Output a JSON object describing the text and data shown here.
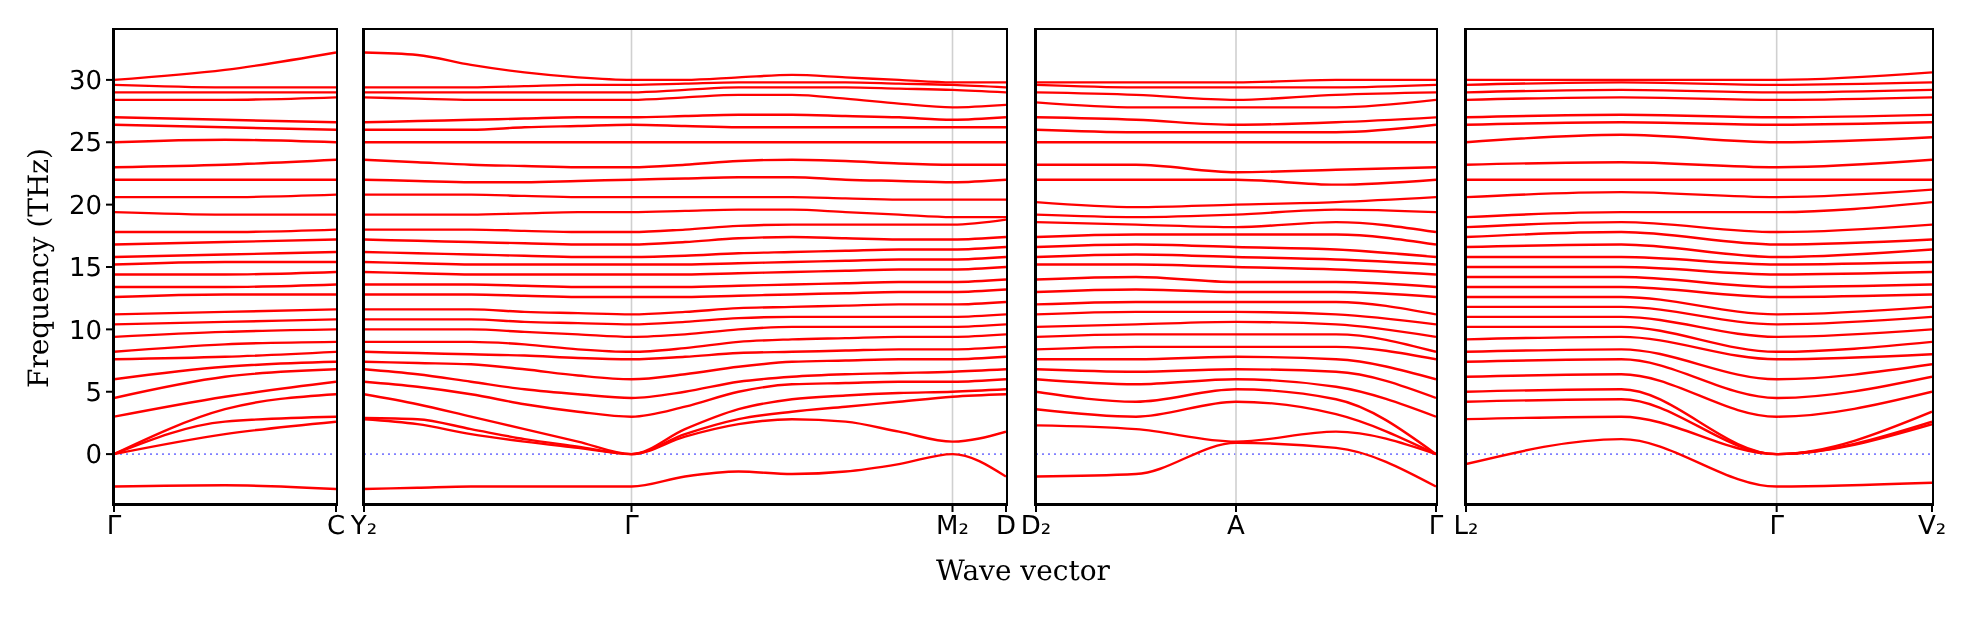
{
  "chart_data": [
    {
      "type": "line",
      "ylabel": "Frequency (THz)",
      "color": "#ff0000",
      "categories": [
        "Γ",
        null,
        "C"
      ],
      "ylim": [
        -4,
        34
      ],
      "yticks": [
        0,
        5,
        10,
        15,
        20,
        25,
        30
      ],
      "ref_lines": [
        {
          "axis": "y",
          "value": 0,
          "color": "#7f7fff",
          "line_style": "dotted"
        }
      ],
      "series": [
        {
          "values": [
            -2.6,
            -2.5,
            -2.8
          ]
        },
        {
          "values": [
            0,
            1.6,
            2.6
          ]
        },
        {
          "values": [
            0,
            2.6,
            3.0
          ]
        },
        {
          "values": [
            0,
            3.6,
            4.8
          ]
        },
        {
          "values": [
            3.0,
            4.6,
            5.8
          ]
        },
        {
          "values": [
            4.5,
            6.2,
            6.8
          ]
        },
        {
          "values": [
            6.0,
            7.0,
            7.4
          ]
        },
        {
          "values": [
            7.6,
            7.8,
            8.2
          ]
        },
        {
          "values": [
            8.2,
            8.8,
            9.0
          ]
        },
        {
          "values": [
            9.4,
            9.8,
            10.0
          ]
        },
        {
          "values": [
            10.4,
            10.6,
            10.8
          ]
        },
        {
          "values": [
            11.2,
            11.4,
            11.6
          ]
        },
        {
          "values": [
            12.6,
            12.8,
            12.8
          ]
        },
        {
          "values": [
            13.4,
            13.4,
            13.6
          ]
        },
        {
          "values": [
            14.4,
            14.4,
            14.6
          ]
        },
        {
          "values": [
            15.2,
            15.4,
            15.4
          ]
        },
        {
          "values": [
            15.8,
            16.0,
            16.2
          ]
        },
        {
          "values": [
            16.8,
            17.0,
            17.2
          ]
        },
        {
          "values": [
            17.8,
            17.8,
            18.0
          ]
        },
        {
          "values": [
            19.4,
            19.2,
            19.2
          ]
        },
        {
          "values": [
            20.6,
            20.6,
            20.8
          ]
        },
        {
          "values": [
            22.0,
            22.0,
            22.0
          ]
        },
        {
          "values": [
            23.0,
            23.2,
            23.6
          ]
        },
        {
          "values": [
            25.0,
            25.2,
            25.0
          ]
        },
        {
          "values": [
            26.4,
            26.2,
            26.0
          ]
        },
        {
          "values": [
            27.0,
            26.8,
            26.6
          ]
        },
        {
          "values": [
            28.4,
            28.4,
            28.6
          ]
        },
        {
          "values": [
            29.0,
            29.0,
            29.0
          ]
        },
        {
          "values": [
            29.6,
            29.4,
            29.4
          ]
        },
        {
          "values": [
            30.0,
            30.8,
            32.2
          ]
        }
      ]
    },
    {
      "type": "line",
      "xlabel": "Wave vector",
      "color": "#ff0000",
      "tick_labels": "x",
      "categories": [
        "Y₂",
        null,
        null,
        null,
        null,
        "Γ",
        null,
        null,
        null,
        null,
        null,
        "M₂",
        "D"
      ],
      "ylim": [
        -4,
        34
      ],
      "yticks": [
        0,
        5,
        10,
        15,
        20,
        25,
        30
      ],
      "ref_lines": [
        {
          "axis": "y",
          "value": 0,
          "color": "#7f7fff",
          "line_style": "dotted"
        },
        {
          "axis": "x",
          "value": "Γ",
          "color": "#d0d0d0",
          "line_style": "solid"
        },
        {
          "axis": "x",
          "value": "M₂",
          "color": "#d0d0d0",
          "line_style": "solid"
        }
      ],
      "series": [
        {
          "values": [
            -2.8,
            -2.7,
            -2.6,
            -2.6,
            -2.6,
            -2.6,
            -1.8,
            -1.4,
            -1.6,
            -1.4,
            -0.8,
            0,
            -1.8
          ]
        },
        {
          "values": [
            2.8,
            2.4,
            1.6,
            1.0,
            0.5,
            0,
            1.4,
            2.4,
            2.8,
            2.6,
            1.8,
            1.0,
            1.8
          ]
        },
        {
          "values": [
            2.9,
            2.8,
            2.0,
            1.2,
            0.6,
            0,
            1.6,
            2.8,
            3.4,
            3.8,
            4.2,
            4.6,
            4.8
          ]
        },
        {
          "values": [
            4.8,
            4.0,
            3.0,
            2.0,
            1.0,
            0,
            2.0,
            3.6,
            4.4,
            4.7,
            4.9,
            5.0,
            5.2
          ]
        },
        {
          "values": [
            5.8,
            5.4,
            4.8,
            4.0,
            3.4,
            3.0,
            3.8,
            5.0,
            5.6,
            5.7,
            5.8,
            5.8,
            6.0
          ]
        },
        {
          "values": [
            6.8,
            6.4,
            5.8,
            5.2,
            4.8,
            4.5,
            5.0,
            5.8,
            6.2,
            6.4,
            6.5,
            6.6,
            6.8
          ]
        },
        {
          "values": [
            7.4,
            7.3,
            7.2,
            6.8,
            6.3,
            6.0,
            6.4,
            7.0,
            7.4,
            7.5,
            7.6,
            7.6,
            7.8
          ]
        },
        {
          "values": [
            8.2,
            8.1,
            8.0,
            7.9,
            7.7,
            7.6,
            7.8,
            8.1,
            8.2,
            8.3,
            8.4,
            8.4,
            8.6
          ]
        },
        {
          "values": [
            9.0,
            9.0,
            9.0,
            8.8,
            8.4,
            8.2,
            8.5,
            9.0,
            9.2,
            9.3,
            9.4,
            9.4,
            9.6
          ]
        },
        {
          "values": [
            10.0,
            10.0,
            10.0,
            9.8,
            9.6,
            9.4,
            9.6,
            10.0,
            10.2,
            10.2,
            10.2,
            10.2,
            10.4
          ]
        },
        {
          "values": [
            10.8,
            10.8,
            10.8,
            10.6,
            10.5,
            10.4,
            10.6,
            10.9,
            11.0,
            11.0,
            11.0,
            11.0,
            11.2
          ]
        },
        {
          "values": [
            11.6,
            11.6,
            11.6,
            11.4,
            11.3,
            11.2,
            11.4,
            11.7,
            11.8,
            11.9,
            12.0,
            12.0,
            12.2
          ]
        },
        {
          "values": [
            12.8,
            12.8,
            12.8,
            12.7,
            12.6,
            12.6,
            12.6,
            12.7,
            12.8,
            12.9,
            13.0,
            13.0,
            13.2
          ]
        },
        {
          "values": [
            13.6,
            13.6,
            13.6,
            13.5,
            13.4,
            13.4,
            13.4,
            13.5,
            13.6,
            13.7,
            13.8,
            13.8,
            14.0
          ]
        },
        {
          "values": [
            14.6,
            14.5,
            14.4,
            14.4,
            14.4,
            14.4,
            14.4,
            14.5,
            14.6,
            14.7,
            14.8,
            14.8,
            15.0
          ]
        },
        {
          "values": [
            15.4,
            15.3,
            15.2,
            15.2,
            15.2,
            15.2,
            15.2,
            15.3,
            15.4,
            15.5,
            15.6,
            15.6,
            15.8
          ]
        },
        {
          "values": [
            16.2,
            16.1,
            16.0,
            15.9,
            15.8,
            15.8,
            15.9,
            16.1,
            16.2,
            16.3,
            16.4,
            16.4,
            16.6
          ]
        },
        {
          "values": [
            17.2,
            17.1,
            17.0,
            16.9,
            16.8,
            16.8,
            17.0,
            17.3,
            17.4,
            17.3,
            17.2,
            17.2,
            17.4
          ]
        },
        {
          "values": [
            18.0,
            18.0,
            18.0,
            17.9,
            17.8,
            17.8,
            18.0,
            18.3,
            18.4,
            18.4,
            18.4,
            18.4,
            18.8
          ]
        },
        {
          "values": [
            19.2,
            19.2,
            19.2,
            19.3,
            19.4,
            19.4,
            19.5,
            19.6,
            19.6,
            19.4,
            19.2,
            19.0,
            19.0
          ]
        },
        {
          "values": [
            20.8,
            20.8,
            20.8,
            20.7,
            20.6,
            20.6,
            20.6,
            20.6,
            20.6,
            20.5,
            20.4,
            20.4,
            20.4
          ]
        },
        {
          "values": [
            22.0,
            21.9,
            21.8,
            21.8,
            21.9,
            22.0,
            22.1,
            22.2,
            22.2,
            22.0,
            21.9,
            21.8,
            22.0
          ]
        },
        {
          "values": [
            23.6,
            23.4,
            23.2,
            23.1,
            23.0,
            23.0,
            23.2,
            23.5,
            23.6,
            23.5,
            23.3,
            23.2,
            23.2
          ]
        },
        {
          "values": [
            25.0,
            25.0,
            25.0,
            25.0,
            25.0,
            25.0,
            25.0,
            25.0,
            25.0,
            25.0,
            25.0,
            25.0,
            25.0
          ]
        },
        {
          "values": [
            26.0,
            26.0,
            26.0,
            26.2,
            26.3,
            26.4,
            26.3,
            26.2,
            26.2,
            26.2,
            26.2,
            26.2,
            26.2
          ]
        },
        {
          "values": [
            26.6,
            26.7,
            26.8,
            26.9,
            27.0,
            27.0,
            27.1,
            27.2,
            27.2,
            27.1,
            27.0,
            26.8,
            27.0
          ]
        },
        {
          "values": [
            28.6,
            28.5,
            28.4,
            28.4,
            28.4,
            28.4,
            28.6,
            28.8,
            28.8,
            28.5,
            28.1,
            27.8,
            28.0
          ]
        },
        {
          "values": [
            29.0,
            29.0,
            29.0,
            29.0,
            29.0,
            29.0,
            29.2,
            29.4,
            29.4,
            29.4,
            29.3,
            29.2,
            29.0
          ]
        },
        {
          "values": [
            29.4,
            29.4,
            29.4,
            29.5,
            29.6,
            29.6,
            29.7,
            29.8,
            29.8,
            29.8,
            29.7,
            29.6,
            29.4
          ]
        },
        {
          "values": [
            32.2,
            32.0,
            31.2,
            30.6,
            30.2,
            30.0,
            30.0,
            30.2,
            30.4,
            30.2,
            30.0,
            29.8,
            29.8
          ]
        }
      ]
    },
    {
      "type": "line",
      "color": "#ff0000",
      "tick_labels": "x",
      "categories": [
        "D₂",
        null,
        "A",
        null,
        "Γ"
      ],
      "ylim": [
        -4,
        34
      ],
      "yticks": [
        0,
        5,
        10,
        15,
        20,
        25,
        30
      ],
      "ref_lines": [
        {
          "axis": "y",
          "value": 0,
          "color": "#7f7fff",
          "line_style": "dotted"
        },
        {
          "axis": "x",
          "value": "A",
          "color": "#d0d0d0",
          "line_style": "solid"
        }
      ],
      "series": [
        {
          "values": [
            -1.8,
            -1.6,
            0.9,
            0.5,
            -2.6
          ]
        },
        {
          "values": [
            2.3,
            2.0,
            1.0,
            1.8,
            0
          ]
        },
        {
          "values": [
            3.6,
            3.0,
            4.2,
            3.2,
            0
          ]
        },
        {
          "values": [
            5.0,
            4.2,
            5.2,
            4.4,
            0
          ]
        },
        {
          "values": [
            6.0,
            5.6,
            6.0,
            5.4,
            3.0
          ]
        },
        {
          "values": [
            6.8,
            6.6,
            6.8,
            6.6,
            4.5
          ]
        },
        {
          "values": [
            7.6,
            7.6,
            7.8,
            7.6,
            6.0
          ]
        },
        {
          "values": [
            8.4,
            8.6,
            8.6,
            8.6,
            7.6
          ]
        },
        {
          "values": [
            9.4,
            9.6,
            9.6,
            9.6,
            8.2
          ]
        },
        {
          "values": [
            10.2,
            10.4,
            10.6,
            10.4,
            9.4
          ]
        },
        {
          "values": [
            11.2,
            11.4,
            11.4,
            11.2,
            10.4
          ]
        },
        {
          "values": [
            12.0,
            12.2,
            12.2,
            12.2,
            11.2
          ]
        },
        {
          "values": [
            13.0,
            13.2,
            13.0,
            13.0,
            12.6
          ]
        },
        {
          "values": [
            14.0,
            14.2,
            13.8,
            13.8,
            13.4
          ]
        },
        {
          "values": [
            15.2,
            15.2,
            15.0,
            14.8,
            14.4
          ]
        },
        {
          "values": [
            15.8,
            16.0,
            15.8,
            15.6,
            15.2
          ]
        },
        {
          "values": [
            16.6,
            16.8,
            16.6,
            16.4,
            15.8
          ]
        },
        {
          "values": [
            17.4,
            17.6,
            17.6,
            17.6,
            16.8
          ]
        },
        {
          "values": [
            18.6,
            18.4,
            18.2,
            18.6,
            17.8
          ]
        },
        {
          "values": [
            19.2,
            19.0,
            19.2,
            19.6,
            19.4
          ]
        },
        {
          "values": [
            20.2,
            19.8,
            20.0,
            20.2,
            20.6
          ]
        },
        {
          "values": [
            22.0,
            22.0,
            22.0,
            21.6,
            22.0
          ]
        },
        {
          "values": [
            23.2,
            23.2,
            22.6,
            22.8,
            23.0
          ]
        },
        {
          "values": [
            25.0,
            25.0,
            25.0,
            25.0,
            25.0
          ]
        },
        {
          "values": [
            26.0,
            25.8,
            25.8,
            25.8,
            26.4
          ]
        },
        {
          "values": [
            27.0,
            26.8,
            26.4,
            26.6,
            27.0
          ]
        },
        {
          "values": [
            28.2,
            27.8,
            27.8,
            27.8,
            28.4
          ]
        },
        {
          "values": [
            29.0,
            28.8,
            28.4,
            28.8,
            29.0
          ]
        },
        {
          "values": [
            29.6,
            29.4,
            29.4,
            29.4,
            29.6
          ]
        },
        {
          "values": [
            29.8,
            29.8,
            29.8,
            30.0,
            30.0
          ]
        }
      ]
    },
    {
      "type": "line",
      "color": "#ff0000",
      "tick_labels": "x",
      "categories": [
        "L₂",
        null,
        "Γ",
        "V₂"
      ],
      "ylim": [
        -4,
        34
      ],
      "yticks": [
        0,
        5,
        10,
        15,
        20,
        25,
        30
      ],
      "ref_lines": [
        {
          "axis": "y",
          "value": 0,
          "color": "#7f7fff",
          "line_style": "dotted"
        },
        {
          "axis": "x",
          "value": "Γ",
          "color": "#d0d0d0",
          "line_style": "solid"
        }
      ],
      "series": [
        {
          "values": [
            -0.8,
            1.2,
            -2.6,
            -2.3
          ]
        },
        {
          "values": [
            2.8,
            3.0,
            0,
            2.4
          ]
        },
        {
          "values": [
            4.2,
            4.4,
            0,
            2.6
          ]
        },
        {
          "values": [
            5.0,
            5.2,
            0,
            3.4
          ]
        },
        {
          "values": [
            6.2,
            6.4,
            3.0,
            5.0
          ]
        },
        {
          "values": [
            7.4,
            7.6,
            4.5,
            6.2
          ]
        },
        {
          "values": [
            8.2,
            8.4,
            6.0,
            7.2
          ]
        },
        {
          "values": [
            9.2,
            9.4,
            7.6,
            8.0
          ]
        },
        {
          "values": [
            10.2,
            10.2,
            8.2,
            9.0
          ]
        },
        {
          "values": [
            11.0,
            11.0,
            9.4,
            10.0
          ]
        },
        {
          "values": [
            11.8,
            11.8,
            10.4,
            11.0
          ]
        },
        {
          "values": [
            12.6,
            12.6,
            11.2,
            11.8
          ]
        },
        {
          "values": [
            13.4,
            13.4,
            12.6,
            12.8
          ]
        },
        {
          "values": [
            14.2,
            14.2,
            13.4,
            13.6
          ]
        },
        {
          "values": [
            15.0,
            15.0,
            14.4,
            14.6
          ]
        },
        {
          "values": [
            15.8,
            15.8,
            15.2,
            15.4
          ]
        },
        {
          "values": [
            16.6,
            16.8,
            15.8,
            16.4
          ]
        },
        {
          "values": [
            17.4,
            17.8,
            16.8,
            17.2
          ]
        },
        {
          "values": [
            18.2,
            18.6,
            17.8,
            18.4
          ]
        },
        {
          "values": [
            19.0,
            19.4,
            19.4,
            20.2
          ]
        },
        {
          "values": [
            20.6,
            21.0,
            20.6,
            21.2
          ]
        },
        {
          "values": [
            22.0,
            22.0,
            22.0,
            22.0
          ]
        },
        {
          "values": [
            23.2,
            23.4,
            23.0,
            23.6
          ]
        },
        {
          "values": [
            25.0,
            25.6,
            25.0,
            25.4
          ]
        },
        {
          "values": [
            26.4,
            26.6,
            26.4,
            26.6
          ]
        },
        {
          "values": [
            27.0,
            27.2,
            27.0,
            27.2
          ]
        },
        {
          "values": [
            28.4,
            28.6,
            28.4,
            28.6
          ]
        },
        {
          "values": [
            29.0,
            29.2,
            29.0,
            29.2
          ]
        },
        {
          "values": [
            29.6,
            29.8,
            29.6,
            29.8
          ]
        },
        {
          "values": [
            30.0,
            30.0,
            30.0,
            30.6
          ]
        }
      ]
    }
  ]
}
